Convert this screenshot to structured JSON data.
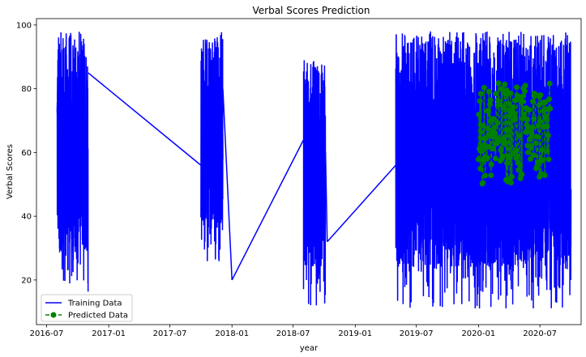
{
  "chart_data": {
    "type": "line",
    "title": "Verbal Scores Prediction",
    "xlabel": "year",
    "ylabel": "Verbal Scores",
    "x_ticks": [
      "2016-07",
      "2017-01",
      "2017-07",
      "2018-01",
      "2018-07",
      "2019-01",
      "2019-07",
      "2020-01",
      "2020-07"
    ],
    "y_ticks": [
      20,
      40,
      60,
      80,
      100
    ],
    "xlim": [
      "2016-06-01",
      "2020-10-31"
    ],
    "ylim": [
      6,
      102
    ],
    "grid": false,
    "legend_position": "bottom-left",
    "series": [
      {
        "name": "Training Data",
        "style": "solid line",
        "color": "#0000ff",
        "segments": [
          {
            "start": "2016-08-01",
            "end": "2016-11-01",
            "min": 16,
            "max": 98
          },
          {
            "start": "2017-10-01",
            "end": "2017-12-05",
            "min": 25,
            "max": 98
          },
          {
            "start": "2018-08-01",
            "end": "2018-10-05",
            "min": 12,
            "max": 89
          },
          {
            "start": "2019-05-01",
            "end": "2020-10-01",
            "min": 11,
            "max": 98
          }
        ],
        "bridges": [
          {
            "x": [
              "2016-11-01",
              "2017-10-01"
            ],
            "y": [
              85,
              56
            ]
          },
          {
            "x": [
              "2017-12-05",
              "2018-01-01"
            ],
            "y": [
              80,
              20
            ]
          },
          {
            "x": [
              "2018-01-01",
              "2018-08-01"
            ],
            "y": [
              20,
              64
            ]
          },
          {
            "x": [
              "2018-10-05",
              "2018-10-10"
            ],
            "y": [
              60,
              32
            ]
          },
          {
            "x": [
              "2018-10-10",
              "2019-05-01"
            ],
            "y": [
              32,
              56
            ]
          },
          {
            "x": [
              "2020-05-01",
              "2020-10-01"
            ],
            "y": [
              44,
              36
            ]
          }
        ]
      },
      {
        "name": "Predicted Data",
        "style": "dashed line with circle markers",
        "color": "#008000",
        "segments": [
          {
            "start": "2020-01-01",
            "end": "2020-07-31",
            "min": 40,
            "max": 84
          }
        ]
      }
    ]
  }
}
